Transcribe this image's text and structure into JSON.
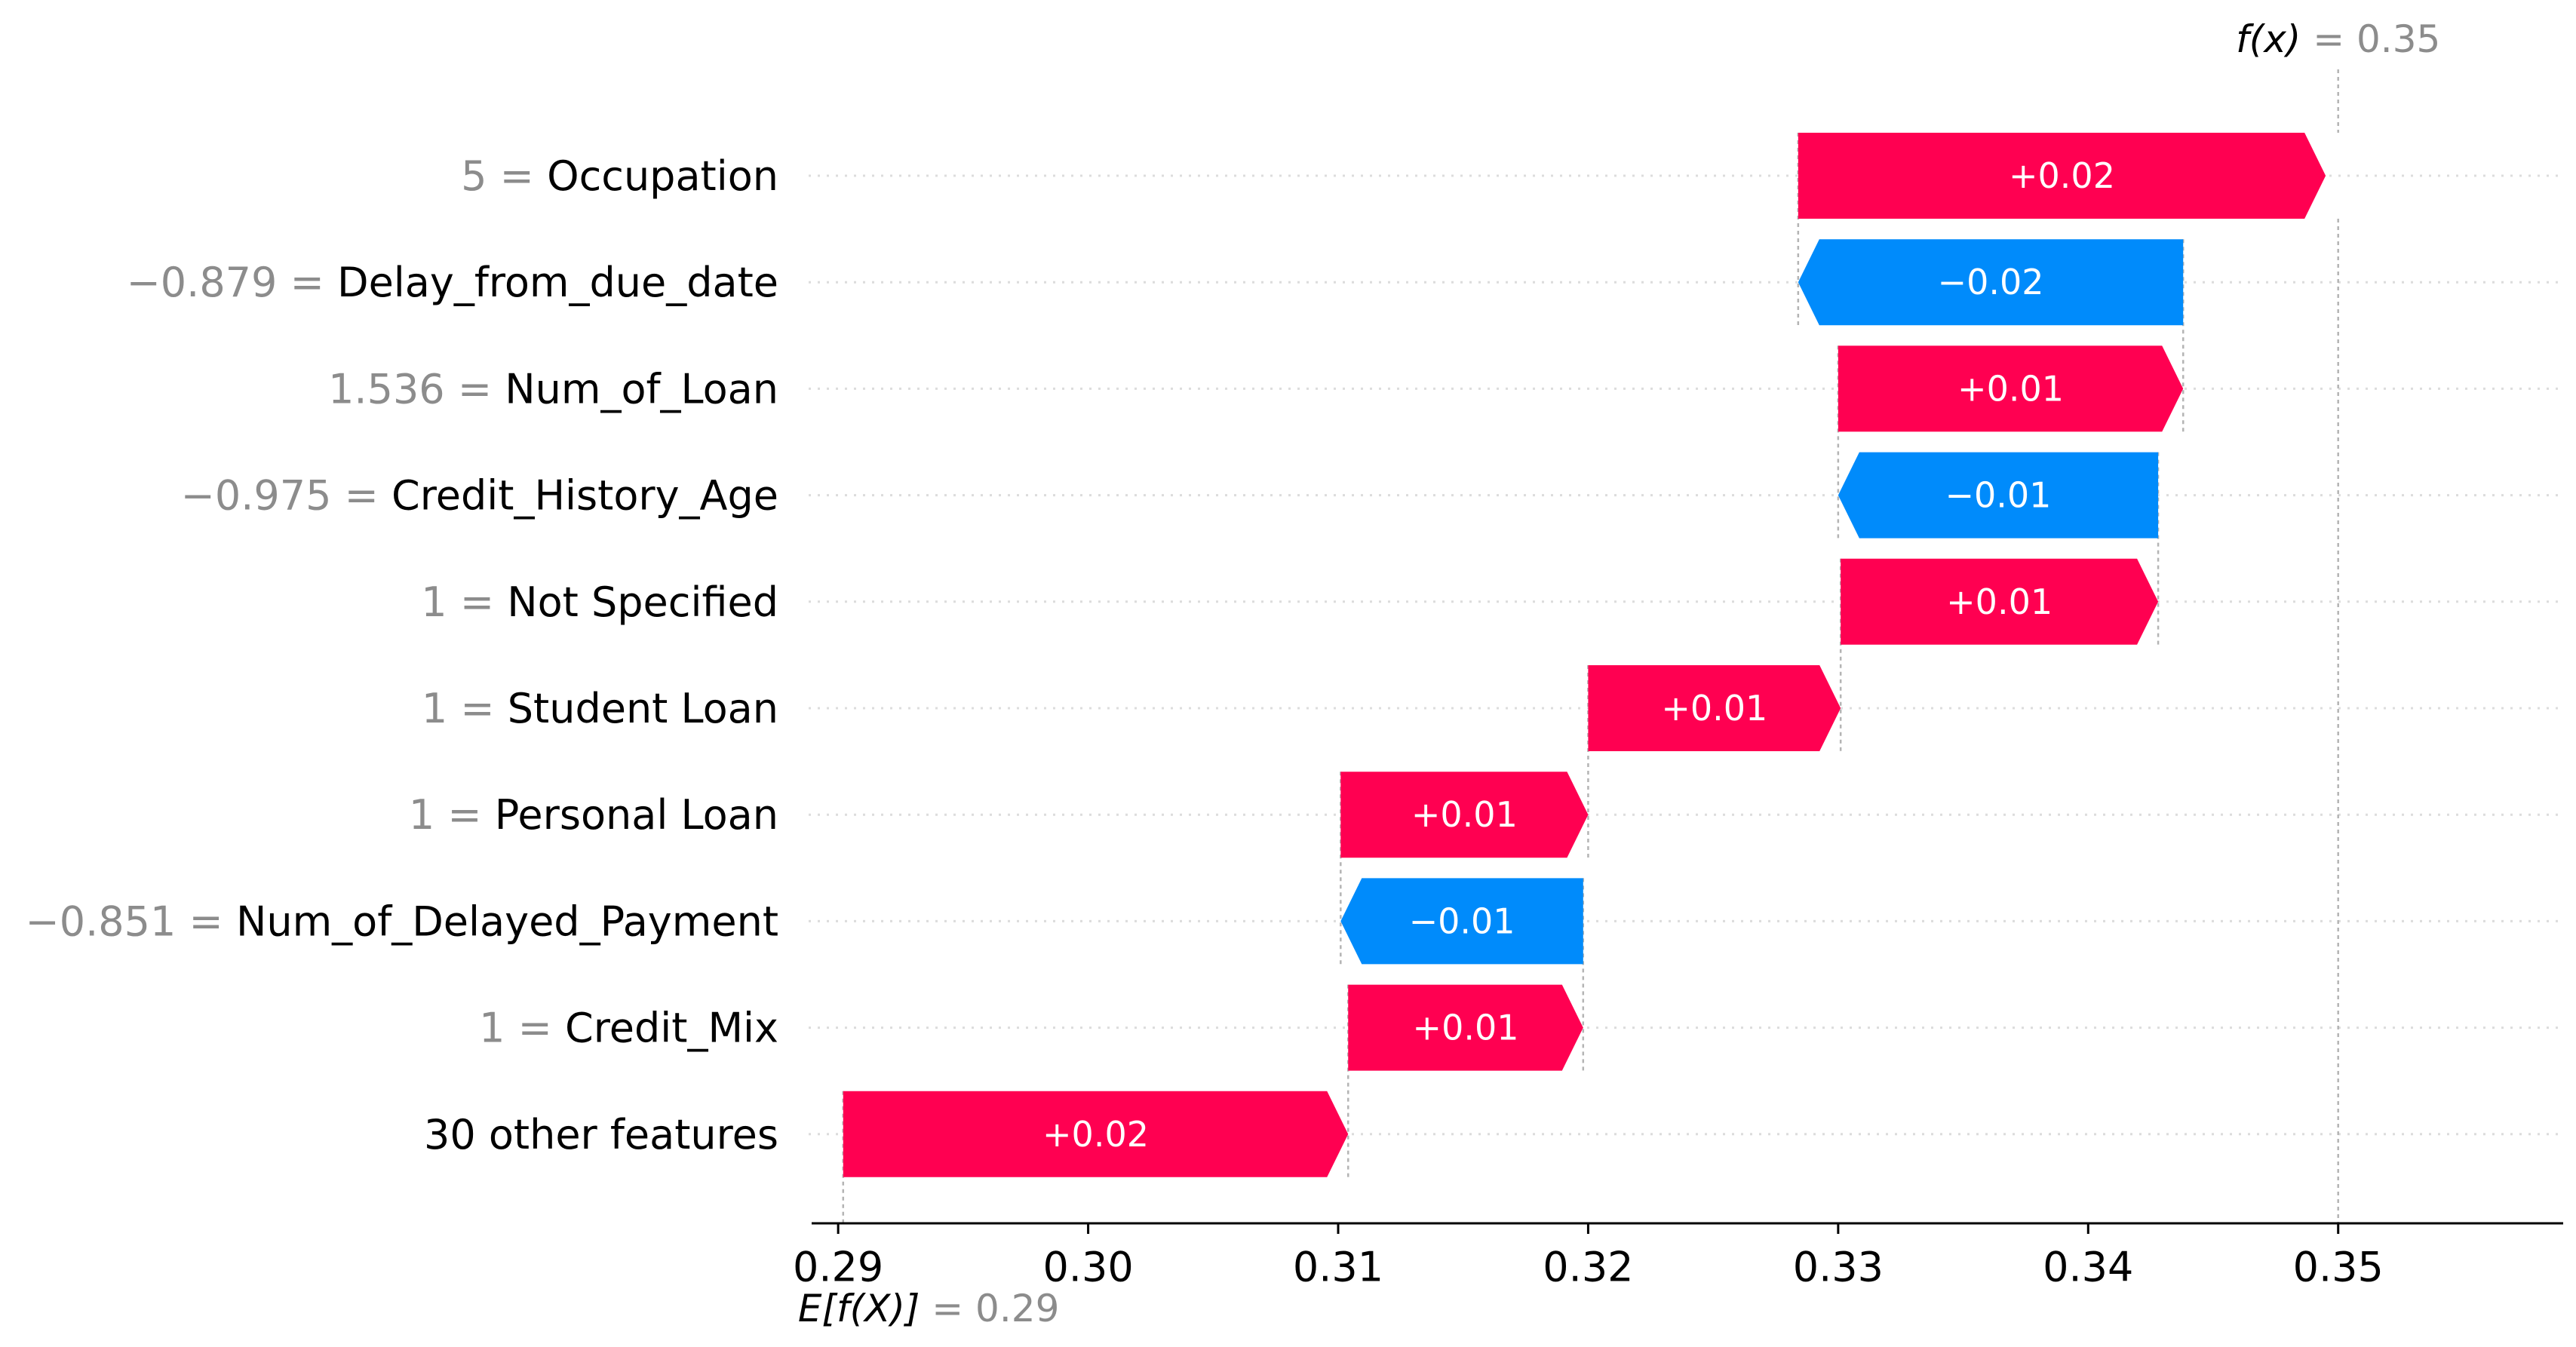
{
  "chart_data": {
    "type": "bar",
    "variant": "waterfall",
    "base_value": 0.29,
    "output_value": 0.35,
    "base_label": {
      "main": "E[f(X)]",
      "value": "= 0.29"
    },
    "output_label": {
      "main": "f(x)",
      "value": "= 0.35"
    },
    "xlim": [
      0.289,
      0.359
    ],
    "x_ticks": [
      0.29,
      0.3,
      0.31,
      0.32,
      0.33,
      0.34,
      0.35
    ],
    "x_tick_labels": [
      "0.29",
      "0.30",
      "0.31",
      "0.32",
      "0.33",
      "0.34",
      "0.35"
    ],
    "features": [
      {
        "value": "5",
        "name": "Occupation",
        "start": 0.3284,
        "end": 0.3495,
        "label": "+0.02"
      },
      {
        "value": "−0.879",
        "name": "Delay_from_due_date",
        "start": 0.3438,
        "end": 0.3284,
        "label": "−0.02"
      },
      {
        "value": "1.536",
        "name": "Num_of_Loan",
        "start": 0.33,
        "end": 0.3438,
        "label": "+0.01"
      },
      {
        "value": "−0.975",
        "name": "Credit_History_Age",
        "start": 0.3428,
        "end": 0.33,
        "label": "−0.01"
      },
      {
        "value": "1",
        "name": "Not Specified",
        "start": 0.3301,
        "end": 0.3428,
        "label": "+0.01"
      },
      {
        "value": "1",
        "name": "Student Loan",
        "start": 0.32,
        "end": 0.3301,
        "label": "+0.01"
      },
      {
        "value": "1",
        "name": "Personal Loan",
        "start": 0.3101,
        "end": 0.32,
        "label": "+0.01"
      },
      {
        "value": "−0.851",
        "name": "Num_of_Delayed_Payment",
        "start": 0.3198,
        "end": 0.3101,
        "label": "−0.01"
      },
      {
        "value": "1",
        "name": "Credit_Mix",
        "start": 0.3104,
        "end": 0.3198,
        "label": "+0.01"
      },
      {
        "value": "",
        "name": "30 other features",
        "start": 0.2902,
        "end": 0.3104,
        "label": "+0.02"
      }
    ],
    "colors": {
      "positive": "#ff0051",
      "negative": "#008bfb"
    },
    "title": "",
    "xlabel": "",
    "ylabel": ""
  }
}
